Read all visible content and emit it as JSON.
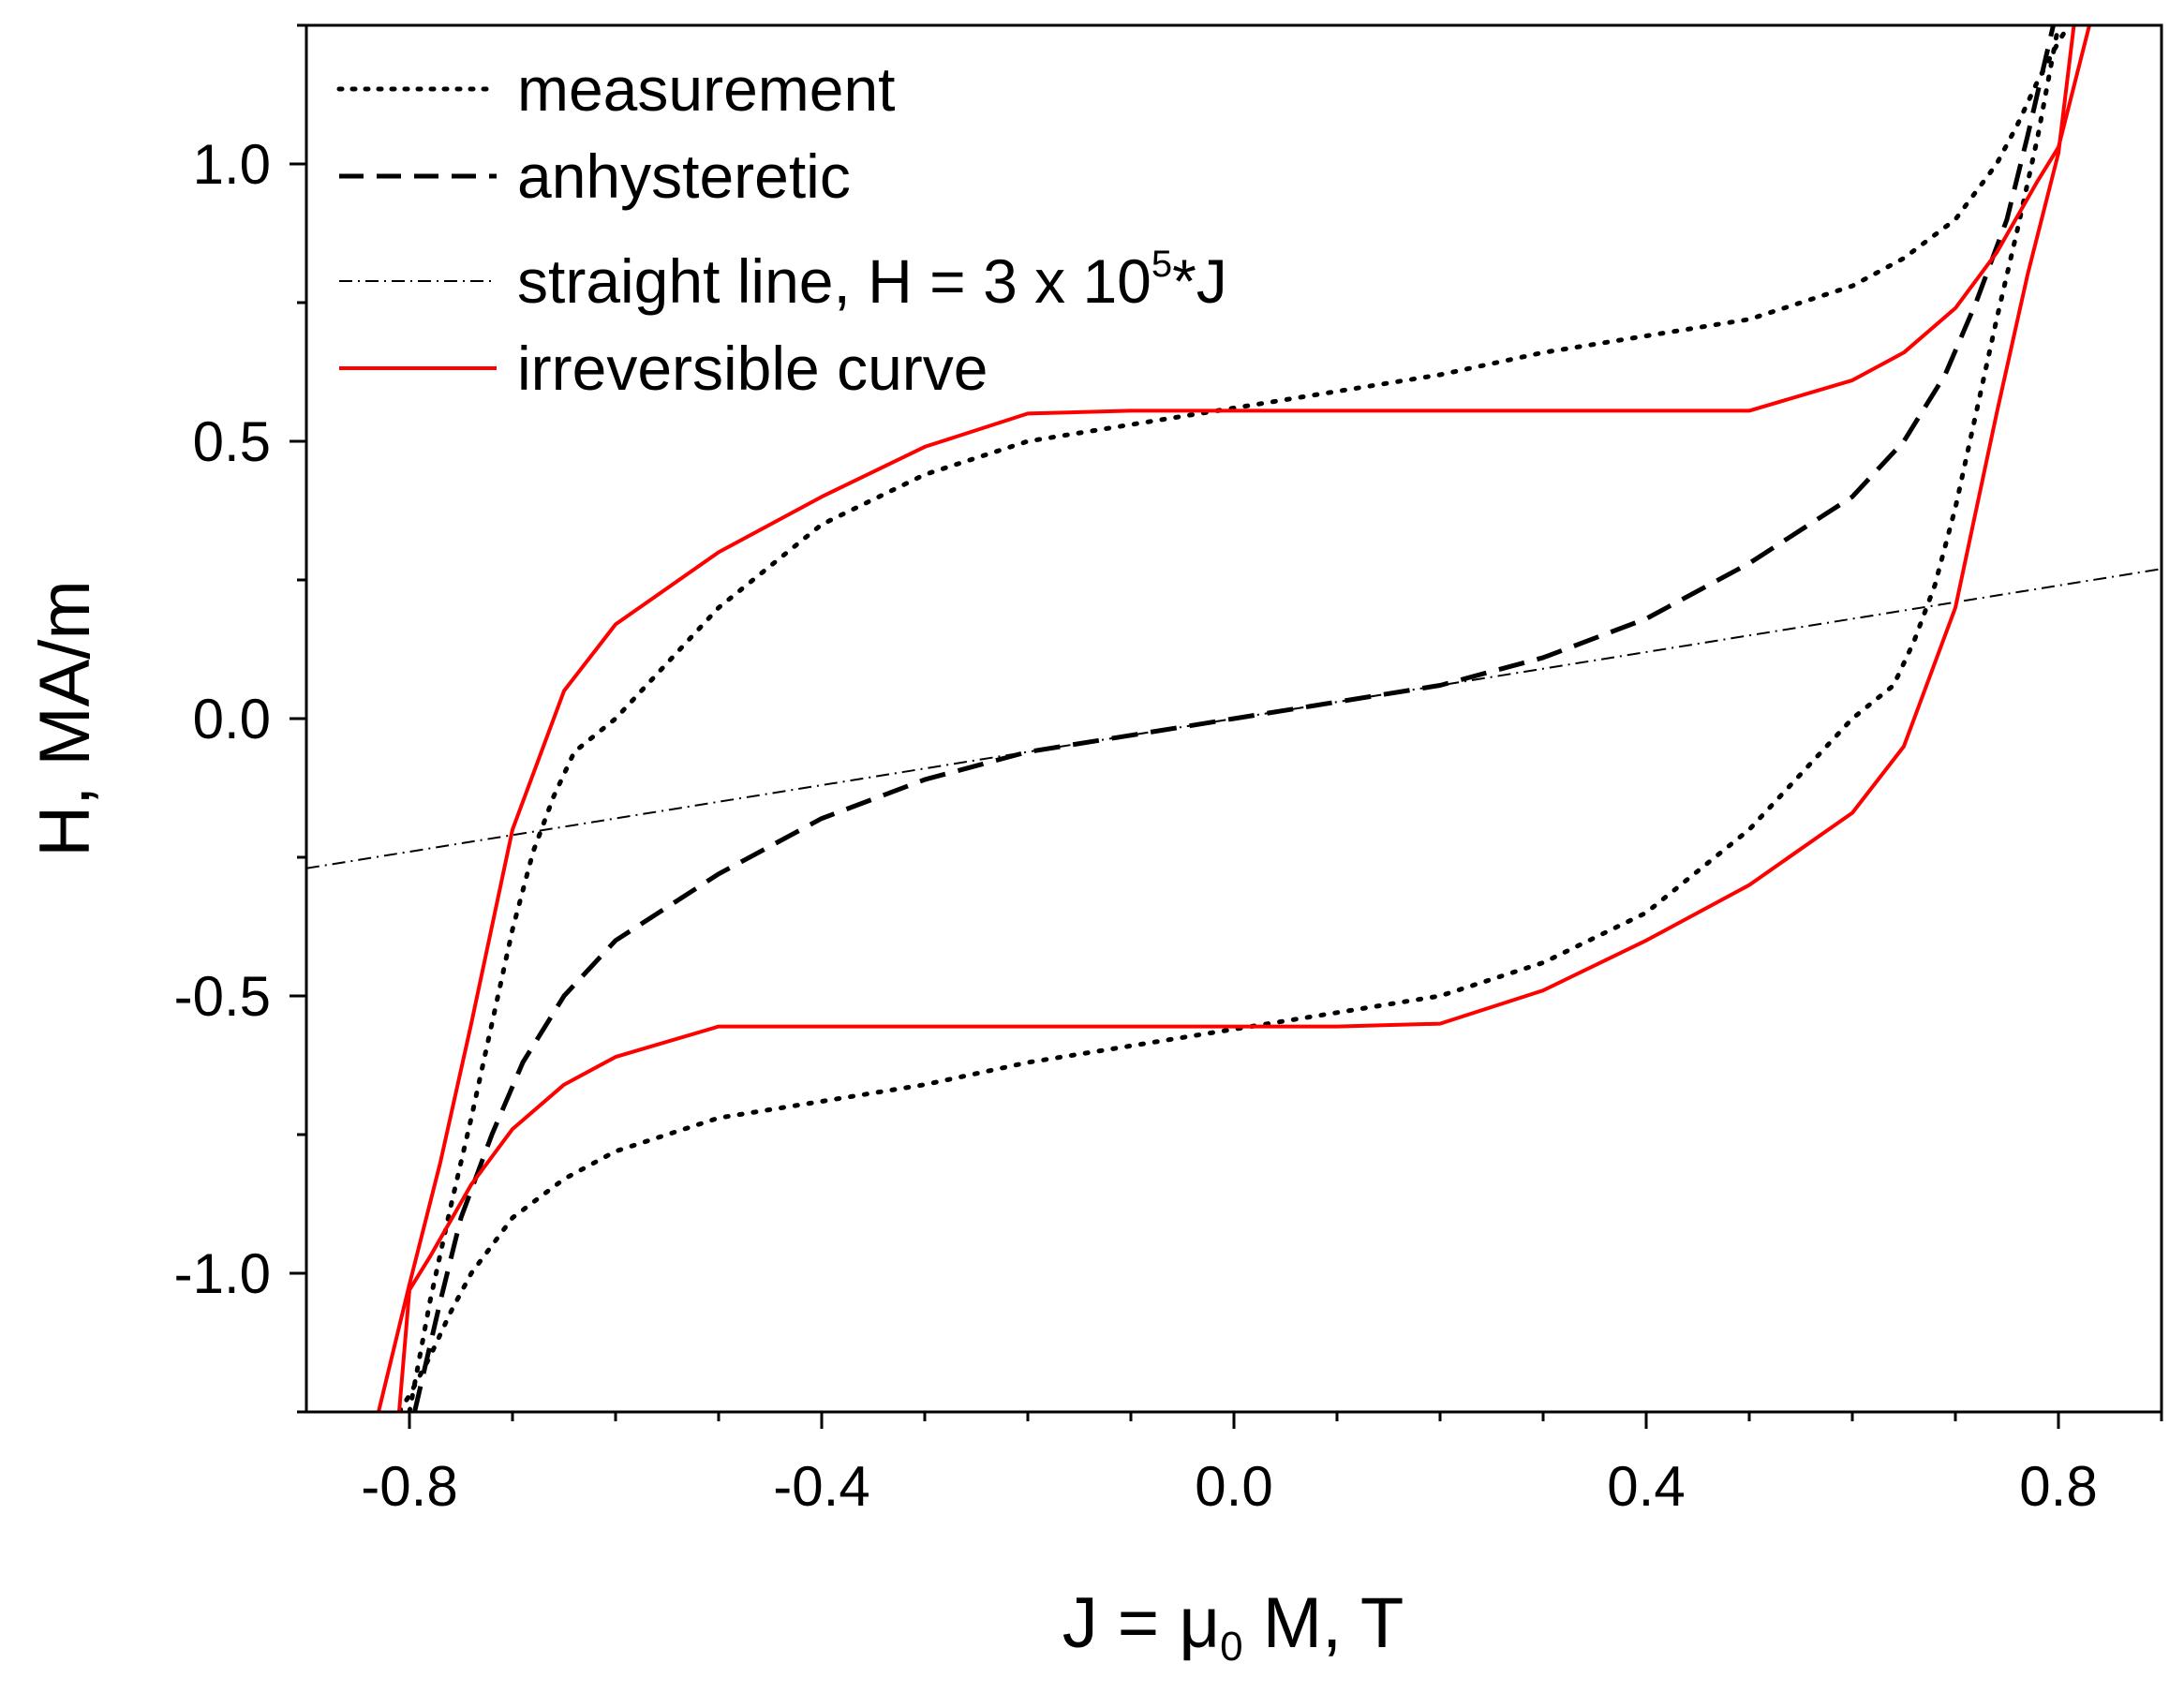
{
  "chart_data": {
    "type": "line",
    "title": "",
    "xlabel": {
      "prefix": "J = ",
      "mu": "μ",
      "sub": "0",
      "suffix": " M, T"
    },
    "ylabel": "H, MA/m",
    "xlim": [
      -0.9,
      0.9
    ],
    "ylim": [
      -1.25,
      1.25
    ],
    "xticks": [
      -0.8,
      -0.4,
      0.0,
      0.4,
      0.8
    ],
    "xtick_labels": [
      "-0.8",
      "-0.4",
      "0.0",
      "0.4",
      "0.8"
    ],
    "yticks": [
      -1.0,
      -0.5,
      0.0,
      0.5,
      1.0
    ],
    "ytick_labels": [
      "-1.0",
      "-0.5",
      "0.0",
      "0.5",
      "1.0"
    ],
    "legend_position": "top-left",
    "legend": {
      "measurement": "measurement",
      "anhysteretic": "anhysteretic",
      "straight_pre": "straight line, H = 3 x 10",
      "straight_sup": "5",
      "straight_post": "*J",
      "irreversible": "irreversible curve"
    },
    "series": [
      {
        "name": "measurement-upper",
        "style": "dotted",
        "color": "#000000",
        "x": [
          -0.8,
          -0.78,
          -0.76,
          -0.74,
          -0.72,
          -0.7,
          -0.68,
          -0.66,
          -0.64,
          -0.6,
          -0.55,
          -0.5,
          -0.4,
          -0.3,
          -0.2,
          -0.1,
          0.0,
          0.1,
          0.2,
          0.3,
          0.4,
          0.5,
          0.6,
          0.65,
          0.7,
          0.74,
          0.76,
          0.78,
          0.8,
          0.81
        ],
        "y": [
          -1.25,
          -1.05,
          -0.88,
          -0.72,
          -0.55,
          -0.38,
          -0.24,
          -0.14,
          -0.06,
          0.0,
          0.1,
          0.2,
          0.35,
          0.44,
          0.5,
          0.53,
          0.56,
          0.59,
          0.62,
          0.66,
          0.69,
          0.72,
          0.78,
          0.83,
          0.9,
          1.0,
          1.07,
          1.15,
          1.22,
          1.25
        ]
      },
      {
        "name": "measurement-lower",
        "style": "dotted",
        "color": "#000000",
        "x": [
          -0.81,
          -0.8,
          -0.78,
          -0.76,
          -0.74,
          -0.7,
          -0.65,
          -0.6,
          -0.5,
          -0.4,
          -0.3,
          -0.2,
          -0.1,
          0.0,
          0.1,
          0.2,
          0.3,
          0.4,
          0.5,
          0.55,
          0.6,
          0.64,
          0.66,
          0.68,
          0.7,
          0.72,
          0.74,
          0.76,
          0.78,
          0.8
        ],
        "y": [
          -1.25,
          -1.22,
          -1.15,
          -1.07,
          -1.0,
          -0.9,
          -0.83,
          -0.78,
          -0.72,
          -0.69,
          -0.66,
          -0.62,
          -0.59,
          -0.56,
          -0.53,
          -0.5,
          -0.44,
          -0.35,
          -0.2,
          -0.1,
          0.0,
          0.06,
          0.14,
          0.24,
          0.38,
          0.55,
          0.72,
          0.88,
          1.05,
          1.25
        ]
      },
      {
        "name": "anhysteretic",
        "style": "dashed",
        "color": "#000000",
        "x": [
          -0.795,
          -0.77,
          -0.75,
          -0.72,
          -0.69,
          -0.65,
          -0.6,
          -0.5,
          -0.4,
          -0.3,
          -0.2,
          -0.1,
          0.0,
          0.1,
          0.2,
          0.3,
          0.4,
          0.5,
          0.6,
          0.65,
          0.69,
          0.72,
          0.75,
          0.77,
          0.795
        ],
        "y": [
          -1.25,
          -1.05,
          -0.9,
          -0.75,
          -0.62,
          -0.5,
          -0.4,
          -0.28,
          -0.18,
          -0.11,
          -0.06,
          -0.03,
          0.0,
          0.03,
          0.06,
          0.11,
          0.18,
          0.28,
          0.4,
          0.5,
          0.62,
          0.75,
          0.9,
          1.05,
          1.25
        ]
      },
      {
        "name": "straight line",
        "style": "dashdot",
        "color": "#000000",
        "x": [
          -0.9,
          0.9
        ],
        "y": [
          -0.27,
          0.27
        ]
      },
      {
        "name": "irreversible-upper",
        "style": "solid",
        "color": "#ff0000",
        "x": [
          -0.83,
          -0.8,
          -0.77,
          -0.74,
          -0.7,
          -0.65,
          -0.6,
          -0.5,
          -0.4,
          -0.3,
          -0.2,
          -0.1,
          0.0,
          0.1,
          0.2,
          0.3,
          0.4,
          0.5,
          0.6,
          0.65,
          0.7,
          0.74,
          0.78,
          0.8,
          0.83
        ],
        "y": [
          -1.25,
          -1.02,
          -0.8,
          -0.55,
          -0.2,
          0.05,
          0.17,
          0.3,
          0.4,
          0.49,
          0.55,
          0.555,
          0.555,
          0.555,
          0.555,
          0.555,
          0.555,
          0.555,
          0.61,
          0.66,
          0.74,
          0.84,
          0.97,
          1.03,
          1.25
        ]
      },
      {
        "name": "irreversible-lower",
        "style": "solid",
        "color": "#ff0000",
        "x": [
          -0.81,
          -0.8,
          -0.78,
          -0.74,
          -0.7,
          -0.65,
          -0.6,
          -0.5,
          -0.4,
          -0.3,
          -0.2,
          -0.1,
          0.0,
          0.1,
          0.2,
          0.3,
          0.4,
          0.5,
          0.6,
          0.65,
          0.7,
          0.74,
          0.77,
          0.8,
          0.815
        ],
        "y": [
          -1.25,
          -1.03,
          -0.97,
          -0.84,
          -0.74,
          -0.66,
          -0.61,
          -0.555,
          -0.555,
          -0.555,
          -0.555,
          -0.555,
          -0.555,
          -0.555,
          -0.55,
          -0.49,
          -0.4,
          -0.3,
          -0.17,
          -0.05,
          0.2,
          0.55,
          0.8,
          1.02,
          1.25
        ]
      }
    ]
  }
}
